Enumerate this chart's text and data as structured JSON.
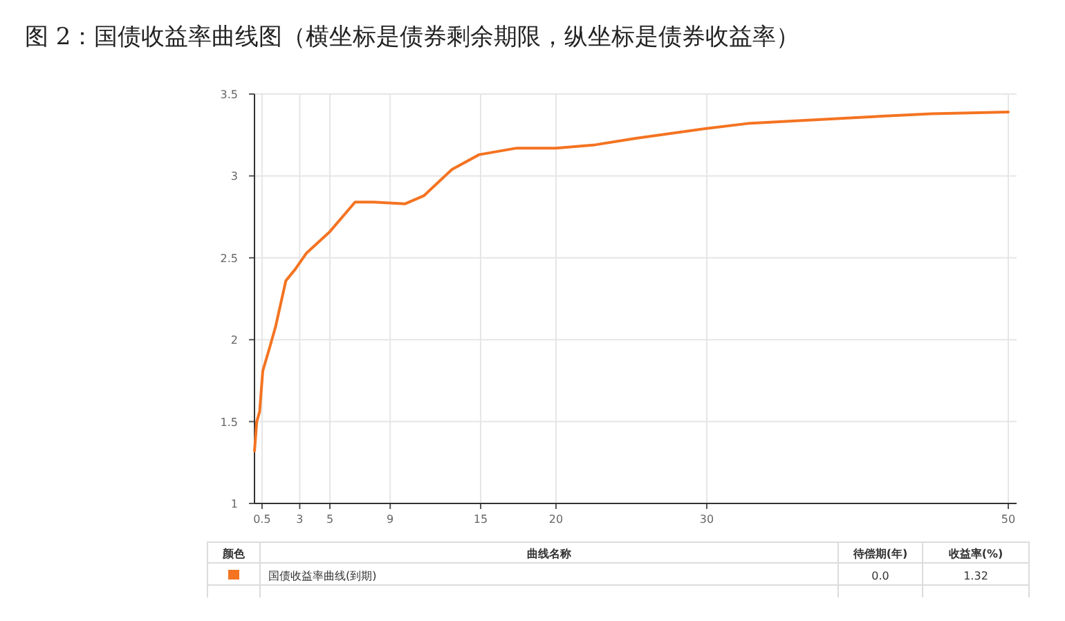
{
  "chart_data": {
    "type": "line",
    "title": "图 2：国债收益率曲线图（横坐标是债券剩余期限，纵坐标是债券收益率）",
    "series": [
      {
        "name": "国债收益率曲线(到期)",
        "color": "#f47321",
        "x": [
          0,
          0.15,
          0.34,
          0.55,
          1.0,
          1.4,
          2.08,
          2.7,
          3.46,
          5.0,
          6.67,
          7.9,
          10.0,
          11.25,
          13.1,
          14.9,
          17.4,
          20.0,
          22.6,
          25.3,
          30,
          32.7,
          40.6,
          44.9,
          50
        ],
        "values": [
          1.32,
          1.5,
          1.56,
          1.81,
          1.95,
          2.08,
          2.36,
          2.43,
          2.53,
          2.66,
          2.84,
          2.84,
          2.83,
          2.88,
          3.04,
          3.13,
          3.17,
          3.17,
          3.19,
          3.23,
          3.29,
          3.32,
          3.36,
          3.38,
          3.39
        ]
      }
    ],
    "xlim": [
      0,
      50
    ],
    "ylim": [
      1,
      3.5
    ],
    "xticks": [
      0.5,
      3,
      5,
      9,
      15,
      20,
      30,
      50
    ],
    "yticks": [
      1,
      1.5,
      2,
      2.5,
      3,
      3.5
    ],
    "grid": true,
    "legend": "bottom",
    "marker": "none",
    "line_style": "solid",
    "annotations": [
      "颜色",
      "曲线名称",
      "待偿期(年)",
      "收益率(%)",
      "0.0",
      "1.32"
    ]
  }
}
